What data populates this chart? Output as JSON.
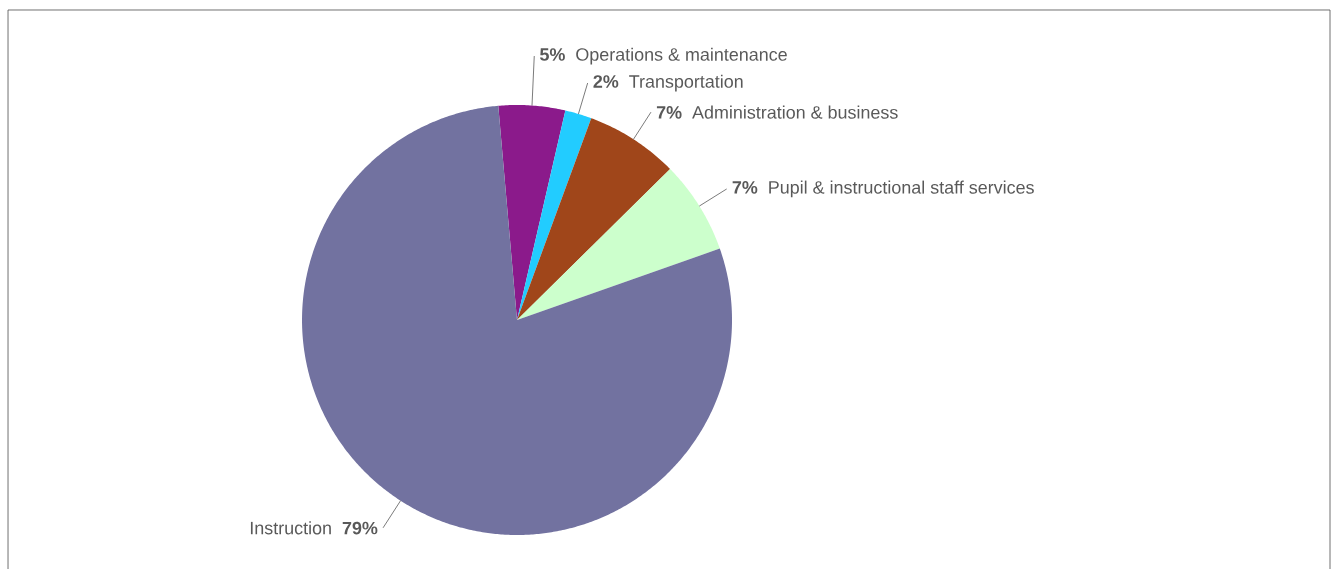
{
  "chart_data": {
    "type": "pie",
    "categories": [
      "Operations & maintenance",
      "Transportation",
      "Administration & business",
      "Pupil & instructional staff services",
      "Instruction"
    ],
    "values": [
      5,
      2,
      7,
      7,
      79
    ],
    "value_labels": [
      "5%",
      "2%",
      "7%",
      "7%",
      "79%"
    ],
    "colors": [
      "#8b1a8b",
      "#22ccff",
      "#a0461a",
      "#ccffcc",
      "#7272a0"
    ]
  }
}
